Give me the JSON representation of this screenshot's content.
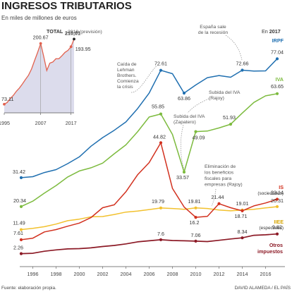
{
  "title": "INGRESOS TRIBUTARIOS",
  "subtitle": "En miles de millones de euros",
  "footer": {
    "source": "Fuente: elaboración propia.",
    "credit": "DAVID ALAMEDA / EL PAÍS"
  },
  "colors": {
    "irpf": "#1f6fb0",
    "iva": "#7dbb3f",
    "is": "#d2311f",
    "iiee": "#f2c12e",
    "otros": "#8c1a26",
    "total_line": "#e2624f",
    "total_fill": "#dcdcec"
  },
  "annotations": {
    "espana_sale": [
      "España sale",
      "de la recesión"
    ],
    "lehman": [
      "Caída de",
      "Lehman",
      "Brothers.",
      "Comienza",
      "la crisis"
    ],
    "iva_rajoy": [
      "Subida del IVA",
      "(Rajoy)"
    ],
    "iva_zapatero": [
      "Subida del IVA",
      "(Zapatero)"
    ],
    "eliminacion": [
      "Eliminación de",
      "los beneficios",
      "fiscales para",
      "empresas (Rajoy)"
    ],
    "en_2017_prefix": "En ",
    "en_2017_year": "2017"
  },
  "series_labels": {
    "irpf": "IRPF",
    "iva": "IVA",
    "is": "IS",
    "is_sub": "(sociedades)",
    "iiee": "IIEE",
    "iiee_sub": "(especiales)",
    "otros_1": "Otros",
    "otros_2": "impuestos"
  },
  "inset": {
    "label": "TOTAL",
    "note": "2018 (previsión)",
    "note_value": "210,01",
    "x_ticks": [
      "1995",
      "2007",
      "2017"
    ]
  },
  "chart_data": [
    {
      "type": "line",
      "title": "INGRESOS TRIBUTARIOS",
      "ylabel": "En miles de millones de euros",
      "x": [
        1995,
        1996,
        1997,
        1998,
        1999,
        2000,
        2001,
        2002,
        2003,
        2004,
        2005,
        2006,
        2007,
        2008,
        2009,
        2010,
        2011,
        2012,
        2013,
        2014,
        2015,
        2016,
        2017
      ],
      "x_ticks": [
        "1996",
        "1998",
        "2000",
        "2002",
        "2004",
        "2006",
        "2008",
        "2010",
        "2012",
        "2014",
        "2016"
      ],
      "series": [
        {
          "name": "IRPF",
          "values": [
            31.42,
            31.8,
            33.4,
            34.5,
            36.8,
            39.4,
            43.5,
            46.8,
            49.6,
            52.8,
            57.9,
            63.9,
            72.61,
            71.3,
            63.86,
            66.98,
            69.8,
            70.6,
            69.95,
            72.66,
            72.3,
            72.4,
            77.04
          ],
          "labels": {
            "0": "31.42",
            "12": "72.61",
            "14": "63.86",
            "19": "72.66",
            "22": "77.04"
          }
        },
        {
          "name": "IVA",
          "values": [
            20.34,
            22.4,
            25.5,
            28.4,
            31.7,
            34.0,
            35.2,
            37.0,
            40.6,
            44.0,
            49.0,
            54.7,
            55.85,
            48.0,
            33.57,
            49.09,
            49.3,
            50.5,
            51.93,
            56.2,
            60.3,
            62.8,
            63.65
          ],
          "labels": {
            "0": "20.34",
            "12": "55.85",
            "14": "33.57",
            "15": "49.09",
            "18": "51.93",
            "22": "63.65"
          }
        },
        {
          "name": "IS",
          "values": [
            7.61,
            8.2,
            10.6,
            11.5,
            12.8,
            14.0,
            16.1,
            19.9,
            21.0,
            26.0,
            32.5,
            37.2,
            44.82,
            27.3,
            20.2,
            16.2,
            16.6,
            21.44,
            19.9,
            18.71,
            20.6,
            21.7,
            23.14
          ],
          "labels": {
            "0": "7.61",
            "12": "44.82",
            "15": "16.2",
            "17": "21.44",
            "19": "18.71",
            "22": "23.14"
          }
        },
        {
          "name": "IIEE",
          "values": [
            11.49,
            12.0,
            12.6,
            13.6,
            14.9,
            15.5,
            16.4,
            16.5,
            17.3,
            18.2,
            18.6,
            19.2,
            19.79,
            19.6,
            19.3,
            19.81,
            19.6,
            19.0,
            18.7,
            19.01,
            19.3,
            19.8,
            20.31
          ],
          "labels": {
            "0": "11.49",
            "12": "19.79",
            "15": "19.81",
            "19": "19.01",
            "22": "20.31"
          }
        },
        {
          "name": "Otros impuestos",
          "values": [
            2.26,
            2.4,
            3.2,
            3.7,
            4.1,
            4.2,
            4.5,
            5.0,
            5.4,
            6.0,
            6.8,
            7.2,
            7.6,
            7.3,
            7.2,
            7.06,
            6.9,
            7.4,
            7.9,
            8.34,
            9.3,
            9.5,
            9.82
          ],
          "labels": {
            "0": "2.26",
            "12": "7.6",
            "15": "7.06",
            "19": "8.34",
            "22": "9.82"
          }
        }
      ]
    },
    {
      "type": "area",
      "title": "TOTAL",
      "x": [
        1995,
        1996,
        1997,
        1998,
        1999,
        2000,
        2001,
        2002,
        2003,
        2004,
        2005,
        2006,
        2007,
        2008,
        2009,
        2010,
        2011,
        2012,
        2013,
        2014,
        2015,
        2016,
        2017,
        2018
      ],
      "x_ticks": [
        "1995",
        "2007",
        "2017"
      ],
      "values": [
        73.11,
        76.9,
        85.3,
        91.7,
        100.3,
        107.1,
        115.7,
        125.2,
        134.0,
        147.0,
        164.8,
        181.8,
        200.67,
        173.4,
        144.0,
        159.5,
        161.8,
        168.6,
        168.8,
        174.9,
        182.0,
        186.2,
        193.95,
        210.01
      ],
      "labels": {
        "0": "73.11",
        "12": "200.67",
        "22": "193.95",
        "23": "210,01"
      }
    }
  ]
}
